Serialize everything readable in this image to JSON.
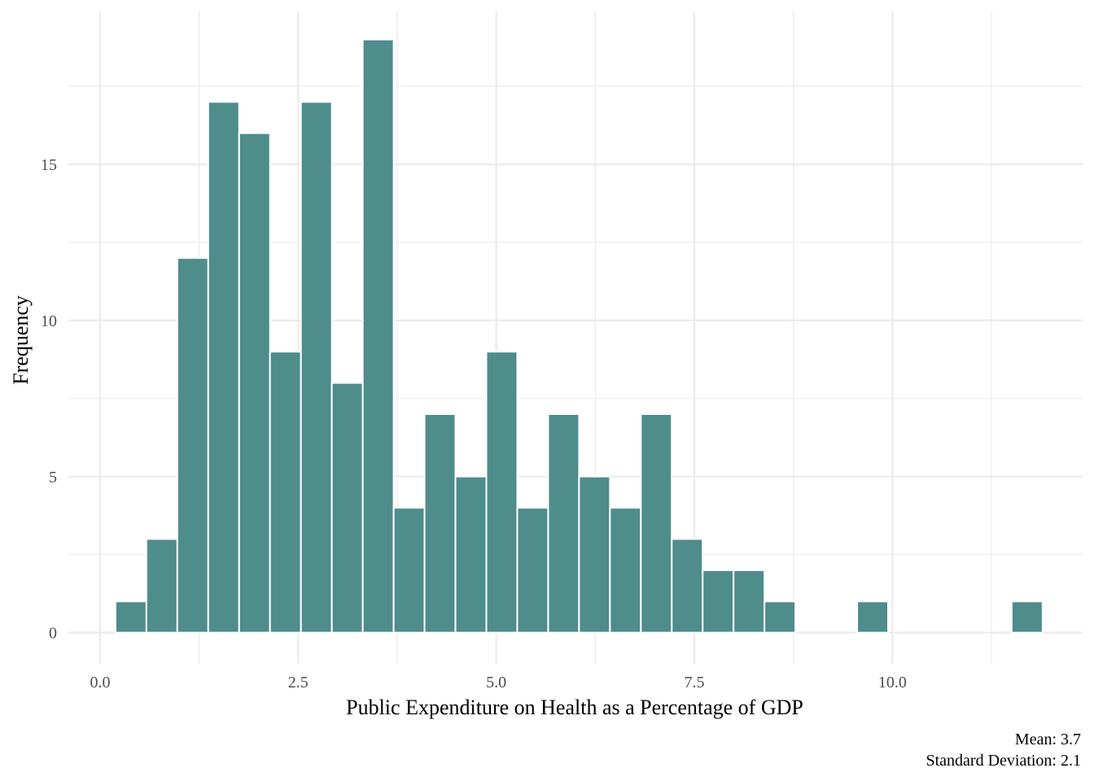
{
  "chart_data": {
    "type": "bar",
    "subtype": "histogram",
    "xlabel": "Public Expenditure on Health as a Percentage of GDP",
    "ylabel": "Frequency",
    "xlim": [
      -0.4,
      12.4
    ],
    "ylim": [
      -1.0,
      19.9
    ],
    "x_ticks": [
      0.0,
      2.5,
      5.0,
      7.5,
      10.0
    ],
    "x_tick_labels": [
      "0.0",
      "2.5",
      "5.0",
      "7.5",
      "10.0"
    ],
    "y_ticks": [
      0,
      5,
      10,
      15
    ],
    "y_tick_labels": [
      "0",
      "5",
      "10",
      "15"
    ],
    "bin_width": 0.39,
    "first_bin_center": 0.39,
    "bins": [
      {
        "x": 0.39,
        "count": 1
      },
      {
        "x": 0.78,
        "count": 3
      },
      {
        "x": 1.17,
        "count": 12
      },
      {
        "x": 1.56,
        "count": 17
      },
      {
        "x": 1.95,
        "count": 16
      },
      {
        "x": 2.34,
        "count": 9
      },
      {
        "x": 2.73,
        "count": 17
      },
      {
        "x": 3.12,
        "count": 8
      },
      {
        "x": 3.51,
        "count": 19
      },
      {
        "x": 3.9,
        "count": 4
      },
      {
        "x": 4.29,
        "count": 7
      },
      {
        "x": 4.68,
        "count": 5
      },
      {
        "x": 5.07,
        "count": 9
      },
      {
        "x": 5.46,
        "count": 4
      },
      {
        "x": 5.85,
        "count": 7
      },
      {
        "x": 6.24,
        "count": 5
      },
      {
        "x": 6.63,
        "count": 4
      },
      {
        "x": 7.02,
        "count": 7
      },
      {
        "x": 7.41,
        "count": 3
      },
      {
        "x": 7.8,
        "count": 2
      },
      {
        "x": 8.19,
        "count": 2
      },
      {
        "x": 8.58,
        "count": 1
      },
      {
        "x": 8.97,
        "count": 0
      },
      {
        "x": 9.36,
        "count": 0
      },
      {
        "x": 9.75,
        "count": 1
      },
      {
        "x": 10.14,
        "count": 0
      },
      {
        "x": 10.53,
        "count": 0
      },
      {
        "x": 10.92,
        "count": 0
      },
      {
        "x": 11.31,
        "count": 0
      },
      {
        "x": 11.7,
        "count": 1
      }
    ],
    "bar_color": "#4f8c8c",
    "bar_edge_color": "#ffffff",
    "grid": true,
    "legend": null
  },
  "caption": {
    "line1": "Mean: 3.7",
    "line2": "Standard Deviation: 2.1"
  }
}
